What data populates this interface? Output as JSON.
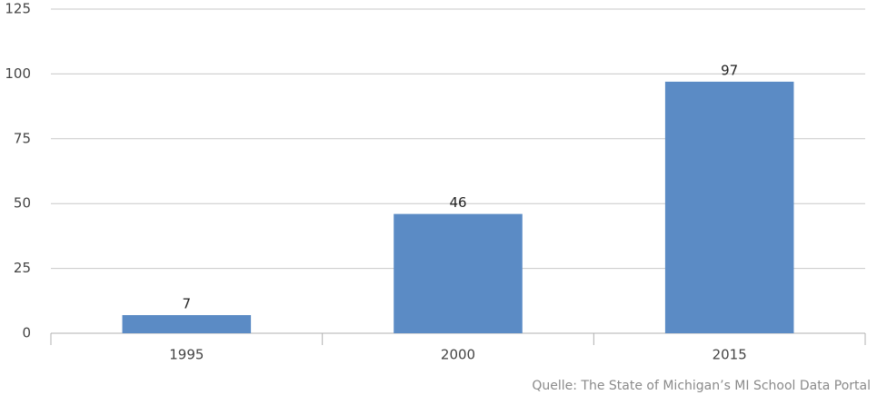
{
  "chart_data": {
    "type": "bar",
    "categories": [
      "1995",
      "2000",
      "2015"
    ],
    "values": [
      7,
      46,
      97
    ],
    "color": "#5b8bc5",
    "ylim": [
      0,
      125
    ],
    "yticks": [
      0,
      25,
      50,
      75,
      100,
      125
    ],
    "grid": true,
    "source": "Quelle: The State of Michigan’s MI School Data Portal"
  }
}
